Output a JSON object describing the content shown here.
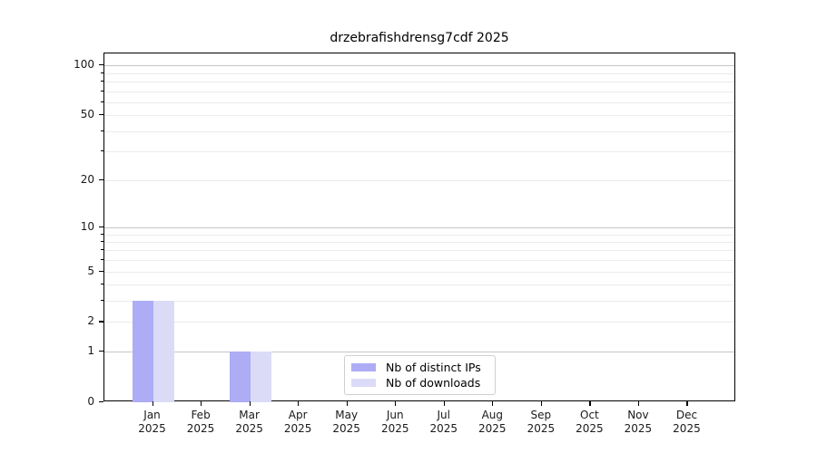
{
  "chart_data": {
    "type": "bar",
    "title": "drzebrafishdrensg7cdf 2025",
    "categories": [
      "Jan 2025",
      "Feb 2025",
      "Mar 2025",
      "Apr 2025",
      "May 2025",
      "Jun 2025",
      "Jul 2025",
      "Aug 2025",
      "Sep 2025",
      "Oct 2025",
      "Nov 2025",
      "Dec 2025"
    ],
    "series": [
      {
        "name": "Nb of distinct IPs",
        "color": "#adacf5",
        "values": [
          3,
          0,
          1,
          0,
          0,
          0,
          0,
          0,
          0,
          0,
          0,
          0
        ]
      },
      {
        "name": "Nb of downloads",
        "color": "#dbdbf8",
        "values": [
          3,
          0,
          1,
          0,
          0,
          0,
          0,
          0,
          0,
          0,
          0,
          0
        ]
      }
    ],
    "xlabel": "",
    "ylabel": "",
    "yscale": "log1p",
    "ylim": [
      0,
      118
    ],
    "yticks": [
      0,
      1,
      2,
      5,
      10,
      20,
      50,
      100
    ],
    "grid": {
      "major_values": [
        1,
        10,
        100
      ],
      "minor_values": [
        2,
        3,
        4,
        5,
        6,
        7,
        8,
        9,
        20,
        30,
        40,
        50,
        60,
        70,
        80,
        90
      ],
      "major_color": "#c6c6c6",
      "minor_color": "#ebebeb"
    },
    "legend_position": "lower center"
  }
}
